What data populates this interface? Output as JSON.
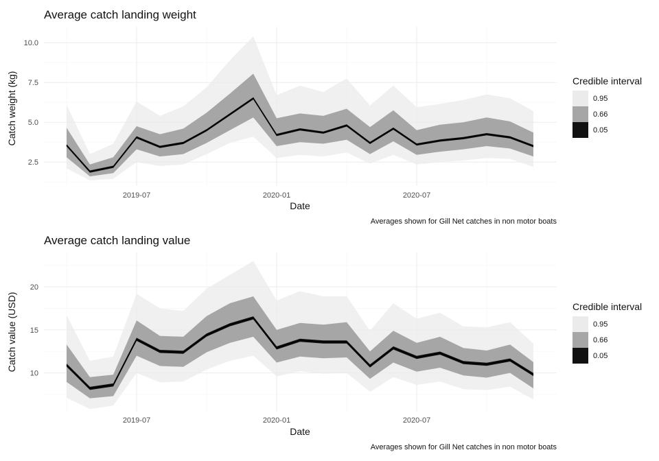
{
  "colors": {
    "band_95": "#ebebeb",
    "band_66": "#a6a6a6",
    "band_05": "#111111",
    "line": "#000000"
  },
  "chart_data": [
    {
      "type": "area",
      "title": "Average catch landing weight",
      "xlabel": "Date",
      "ylabel": "Catch weight (kg)",
      "caption": "Averages shown for Gill Net catches in non motor boats",
      "x": [
        "2019-04",
        "2019-05",
        "2019-06",
        "2019-07",
        "2019-08",
        "2019-09",
        "2019-10",
        "2019-11",
        "2019-12",
        "2020-01",
        "2020-02",
        "2020-03",
        "2020-04",
        "2020-05",
        "2020-06",
        "2020-07",
        "2020-08",
        "2020-09",
        "2020-10",
        "2020-11",
        "2020-12"
      ],
      "x_ticks": [
        "2019-07",
        "2020-01",
        "2020-07"
      ],
      "y_ticks": [
        2.5,
        5.0,
        7.5,
        10.0
      ],
      "y_tick_labels": [
        "2.5",
        "5.0",
        "7.5",
        "10.0"
      ],
      "ylim": [
        1.0,
        11.0
      ],
      "grid": true,
      "legend": {
        "title": "Credible interval",
        "position": "right",
        "entries": [
          "0.95",
          "0.66",
          "0.05"
        ]
      },
      "series": [
        {
          "name": "0.05",
          "values": [
            3.55,
            1.9,
            2.2,
            4.05,
            3.45,
            3.7,
            4.5,
            5.5,
            6.5,
            4.2,
            4.55,
            4.35,
            4.8,
            3.7,
            4.6,
            3.6,
            3.85,
            4.0,
            4.25,
            4.05,
            3.5
          ]
        },
        {
          "name": "0.66",
          "lower": [
            2.8,
            1.6,
            1.8,
            3.3,
            2.85,
            3.0,
            3.7,
            4.5,
            5.3,
            3.5,
            3.75,
            3.65,
            3.9,
            3.0,
            3.8,
            2.95,
            3.15,
            3.3,
            3.5,
            3.35,
            2.85
          ],
          "upper": [
            4.65,
            2.35,
            2.8,
            4.75,
            4.25,
            4.6,
            5.6,
            6.8,
            8.05,
            5.25,
            5.55,
            5.4,
            5.85,
            4.7,
            5.75,
            4.5,
            4.85,
            5.0,
            5.3,
            5.05,
            4.35
          ]
        },
        {
          "name": "0.95",
          "lower": [
            2.1,
            1.35,
            1.45,
            2.5,
            2.25,
            2.35,
            3.0,
            3.7,
            4.1,
            2.75,
            2.95,
            2.85,
            3.1,
            2.4,
            2.95,
            2.35,
            2.5,
            2.6,
            2.75,
            2.7,
            2.2
          ],
          "upper": [
            6.1,
            3.0,
            3.65,
            6.3,
            5.4,
            6.0,
            7.2,
            8.9,
            10.4,
            6.7,
            7.3,
            6.9,
            7.75,
            6.05,
            7.3,
            5.95,
            6.15,
            6.4,
            6.75,
            6.5,
            5.7
          ]
        }
      ]
    },
    {
      "type": "area",
      "title": "Average catch landing value",
      "xlabel": "Date",
      "ylabel": "Catch value (USD)",
      "caption": "Averages shown for Gill Net catches in non motor boats",
      "x": [
        "2019-04",
        "2019-05",
        "2019-06",
        "2019-07",
        "2019-08",
        "2019-09",
        "2019-10",
        "2019-11",
        "2019-12",
        "2020-01",
        "2020-02",
        "2020-03",
        "2020-04",
        "2020-05",
        "2020-06",
        "2020-07",
        "2020-08",
        "2020-09",
        "2020-10",
        "2020-11",
        "2020-12"
      ],
      "x_ticks": [
        "2019-07",
        "2020-01",
        "2020-07"
      ],
      "y_ticks": [
        10,
        15,
        20
      ],
      "y_tick_labels": [
        "10",
        "15",
        "20"
      ],
      "ylim": [
        5.5,
        24.0
      ],
      "grid": true,
      "legend": {
        "title": "Credible interval",
        "position": "right",
        "entries": [
          "0.95",
          "0.66",
          "0.05"
        ]
      },
      "series": [
        {
          "name": "0.05",
          "values": [
            10.9,
            8.2,
            8.6,
            13.9,
            12.5,
            12.4,
            14.4,
            15.6,
            16.4,
            12.9,
            13.8,
            13.6,
            13.6,
            10.8,
            12.9,
            11.8,
            12.3,
            11.2,
            11.0,
            11.5,
            9.8
          ]
        },
        {
          "name": "0.66",
          "lower": [
            8.95,
            7.05,
            7.3,
            12.0,
            10.8,
            10.7,
            12.4,
            13.5,
            14.2,
            11.2,
            11.9,
            11.7,
            11.8,
            9.3,
            11.2,
            10.15,
            10.6,
            9.7,
            9.45,
            10.0,
            8.2
          ],
          "upper": [
            13.3,
            9.5,
            9.8,
            16.1,
            14.3,
            14.2,
            16.6,
            18.1,
            18.9,
            15.0,
            15.8,
            15.6,
            15.9,
            12.5,
            14.9,
            13.5,
            14.2,
            12.9,
            12.6,
            13.3,
            11.25
          ]
        },
        {
          "name": "0.95",
          "lower": [
            7.1,
            5.8,
            6.2,
            10.0,
            8.9,
            9.0,
            10.4,
            11.4,
            12.0,
            9.6,
            10.2,
            9.9,
            10.0,
            7.8,
            9.5,
            8.6,
            9.0,
            8.1,
            8.0,
            8.4,
            6.9
          ]
        },
        {
          "name": "0.95 upper",
          "upper": [
            16.7,
            11.4,
            11.9,
            19.2,
            17.5,
            17.2,
            19.8,
            21.4,
            23.0,
            18.4,
            19.5,
            18.9,
            18.9,
            14.9,
            18.1,
            16.3,
            17.0,
            15.4,
            15.3,
            15.9,
            13.4
          ]
        }
      ]
    }
  ]
}
